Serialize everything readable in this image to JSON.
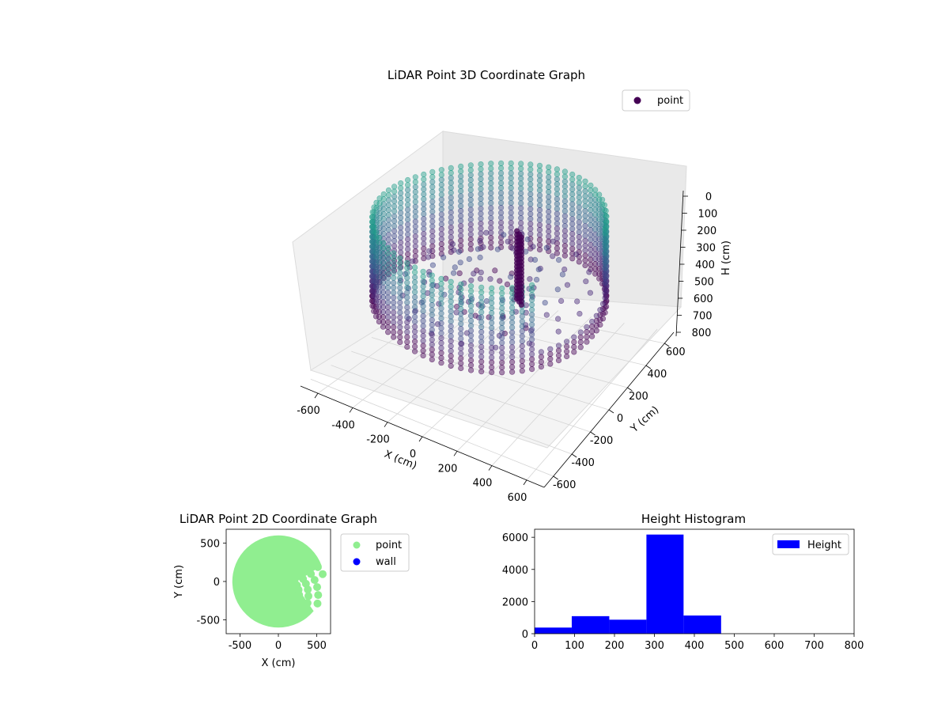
{
  "chart_data": [
    {
      "type": "scatter",
      "projection": "3d",
      "title": "LiDAR Point 3D Coordinate Graph",
      "xlabel": "X (cm)",
      "ylabel": "Y (cm)",
      "zlabel": "H (cm)",
      "xlim": [
        -700,
        700
      ],
      "ylim": [
        -700,
        700
      ],
      "zlim": [
        0,
        800
      ],
      "z_inverted": true,
      "x_ticks": [
        "-600",
        "-400",
        "-200",
        "0",
        "200",
        "400",
        "600"
      ],
      "y_ticks": [
        "-600",
        "-400",
        "-200",
        "0",
        "200",
        "400",
        "600"
      ],
      "z_ticks": [
        "0",
        "100",
        "200",
        "300",
        "400",
        "500",
        "600",
        "700",
        "800"
      ],
      "colormap": "viridis",
      "grid": true,
      "legend_position": "upper right",
      "series": [
        {
          "name": "point",
          "color": "#440154",
          "description_shape": "ring-shaped wall of points",
          "wall_radius": 600,
          "wall_h_range": [
            30,
            460
          ],
          "gap_angle_range_deg": [
            -40,
            20
          ],
          "central_column": {
            "x": 100,
            "y": 100,
            "h_range": [
              100,
              450
            ]
          }
        }
      ]
    },
    {
      "type": "scatter",
      "title": "LiDAR Point 2D Coordinate Graph",
      "xlabel": "X (cm)",
      "ylabel": "Y (cm)",
      "xlim": [
        -680,
        680
      ],
      "ylim": [
        -680,
        680
      ],
      "x_ticks": [
        "-500",
        "0",
        "500"
      ],
      "y_ticks": [
        "-500",
        "0",
        "500"
      ],
      "legend_position": "outside right",
      "series": [
        {
          "name": "point",
          "color": "#90ee90",
          "disc_radius": 600,
          "gap_angle_range_deg": [
            -40,
            20
          ]
        },
        {
          "name": "wall",
          "color": "#0000ff"
        }
      ]
    },
    {
      "type": "bar",
      "title": "Height Histogram",
      "xlabel": "",
      "ylabel": "",
      "xlim": [
        0,
        800
      ],
      "ylim": [
        0,
        6500
      ],
      "x_ticks": [
        "0",
        "100",
        "200",
        "300",
        "400",
        "500",
        "600",
        "700",
        "800"
      ],
      "y_ticks": [
        "0",
        "2000",
        "4000",
        "6000"
      ],
      "legend_position": "upper right",
      "series": [
        {
          "name": "Height",
          "color": "#0000ff",
          "bins": [
            {
              "x0": 0,
              "x1": 93,
              "count": 380
            },
            {
              "x0": 93,
              "x1": 187,
              "count": 1090
            },
            {
              "x0": 187,
              "x1": 280,
              "count": 870
            },
            {
              "x0": 280,
              "x1": 373,
              "count": 6170
            },
            {
              "x0": 373,
              "x1": 467,
              "count": 1130
            },
            {
              "x0": 467,
              "x1": 560,
              "count": 0
            },
            {
              "x0": 560,
              "x1": 653,
              "count": 0
            },
            {
              "x0": 653,
              "x1": 747,
              "count": 0
            },
            {
              "x0": 747,
              "x1": 800,
              "count": 0
            }
          ]
        }
      ]
    }
  ]
}
